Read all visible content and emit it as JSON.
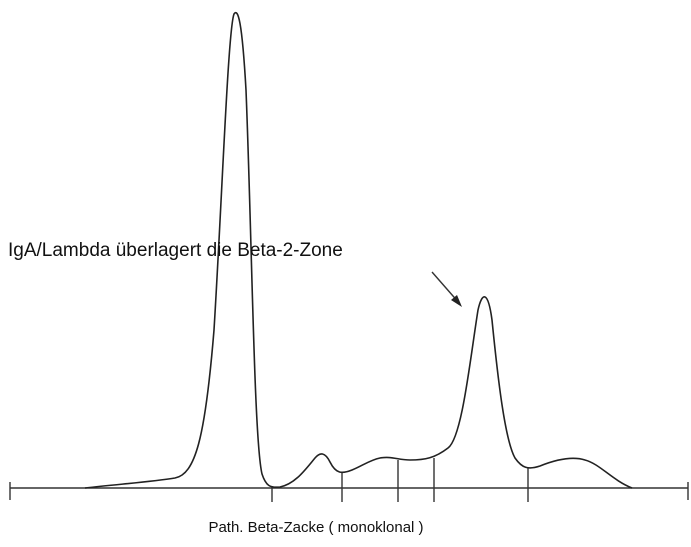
{
  "annotation": "IgA/Lambda überlagert die Beta-2-Zone",
  "caption": "Path. Beta-Zacke ( monoklonal )"
}
